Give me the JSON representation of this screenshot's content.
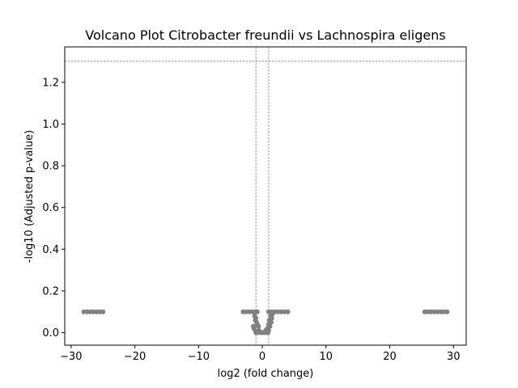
{
  "chart_data": {
    "type": "scatter",
    "title": "Volcano Plot Citrobacter freundii vs Lachnospira eligens",
    "xlabel": "log2 (fold change)",
    "ylabel": "-log10 (Adjusted p-value)",
    "xlim": [
      -31,
      32
    ],
    "ylim": [
      -0.06,
      1.37
    ],
    "xticks": [
      -30,
      -20,
      -10,
      0,
      10,
      20,
      30
    ],
    "xtick_labels": [
      "−30",
      "−20",
      "−10",
      "0",
      "10",
      "20",
      "30"
    ],
    "yticks": [
      0.0,
      0.2,
      0.4,
      0.6,
      0.8,
      1.0,
      1.2
    ],
    "ytick_labels": [
      "0.0",
      "0.2",
      "0.4",
      "0.6",
      "0.8",
      "1.0",
      "1.2"
    ],
    "grid": false,
    "point_color": "#808080",
    "threshold_color": "#808080",
    "thresholds": {
      "fold_change": [
        -1,
        1
      ],
      "significance": 1.301
    },
    "points": [
      [
        -28.0,
        0.1
      ],
      [
        -27.5,
        0.1
      ],
      [
        -27.0,
        0.1
      ],
      [
        -26.5,
        0.1
      ],
      [
        -26.0,
        0.1
      ],
      [
        -25.5,
        0.1
      ],
      [
        -25.0,
        0.1
      ],
      [
        -3.0,
        0.1
      ],
      [
        -2.5,
        0.1
      ],
      [
        -2.0,
        0.1
      ],
      [
        -1.5,
        0.1
      ],
      [
        -1.0,
        0.1
      ],
      [
        -0.8,
        0.1
      ],
      [
        1.0,
        0.1
      ],
      [
        1.5,
        0.1
      ],
      [
        2.0,
        0.1
      ],
      [
        2.5,
        0.1
      ],
      [
        3.0,
        0.1
      ],
      [
        3.5,
        0.1
      ],
      [
        4.0,
        0.1
      ],
      [
        -1.2,
        0.08
      ],
      [
        -1.0,
        0.07
      ],
      [
        -1.1,
        0.06
      ],
      [
        -0.9,
        0.05
      ],
      [
        -0.8,
        0.04
      ],
      [
        -0.6,
        0.03
      ],
      [
        -1.4,
        0.03
      ],
      [
        -1.3,
        0.02
      ],
      [
        -1.1,
        0.01
      ],
      [
        -0.5,
        0.01
      ],
      [
        -0.3,
        0.0
      ],
      [
        -1.0,
        0.0
      ],
      [
        -0.7,
        0.0
      ],
      [
        -0.2,
        0.0
      ],
      [
        0.0,
        0.0
      ],
      [
        0.3,
        0.0
      ],
      [
        0.6,
        0.0
      ],
      [
        0.9,
        0.0
      ],
      [
        0.5,
        0.01
      ],
      [
        1.0,
        0.01
      ],
      [
        0.8,
        0.02
      ],
      [
        1.2,
        0.03
      ],
      [
        1.0,
        0.04
      ],
      [
        1.4,
        0.05
      ],
      [
        1.1,
        0.06
      ],
      [
        1.5,
        0.07
      ],
      [
        1.3,
        0.08
      ],
      [
        1.6,
        0.09
      ],
      [
        25.5,
        0.1
      ],
      [
        26.0,
        0.1
      ],
      [
        26.5,
        0.1
      ],
      [
        27.0,
        0.1
      ],
      [
        27.5,
        0.1
      ],
      [
        28.0,
        0.1
      ],
      [
        28.5,
        0.1
      ],
      [
        29.0,
        0.1
      ]
    ]
  }
}
